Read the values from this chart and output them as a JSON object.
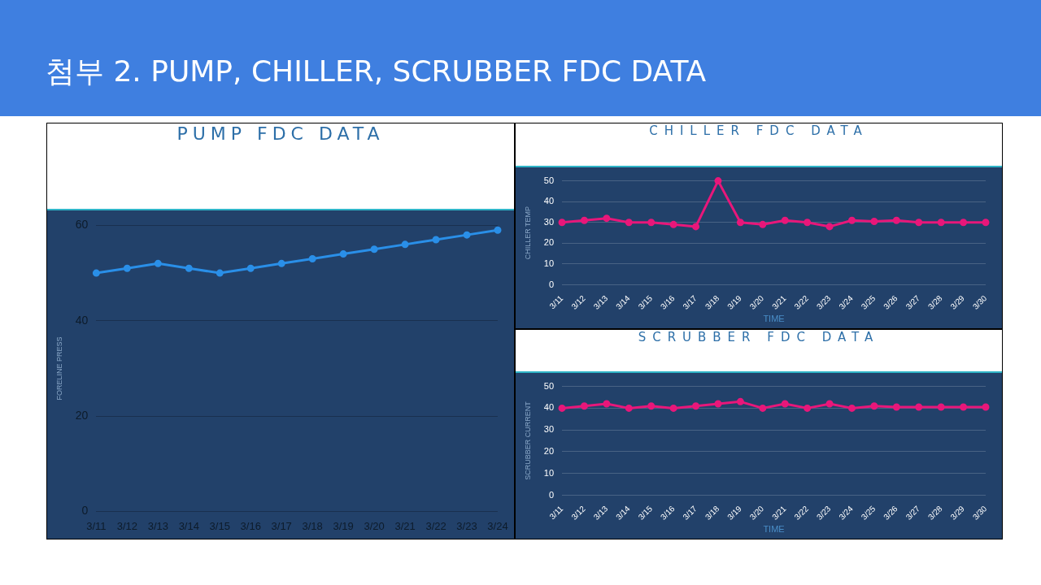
{
  "chart_data": [
    {
      "type": "other",
      "title": "첨부 2. PUMP, CHILLER, SCRUBBER FDC DATA"
    },
    {
      "type": "line",
      "title": "PUMP FDC DATA",
      "ylabel": "FORELINE PRESS",
      "categories": [
        "3/11",
        "3/12",
        "3/13",
        "3/14",
        "3/15",
        "3/16",
        "3/17",
        "3/18",
        "3/19",
        "3/20",
        "3/21",
        "3/22",
        "3/23",
        "3/24"
      ],
      "series": [
        {
          "color": "#2a8fe8",
          "values": [
            50,
            51,
            52,
            51,
            50,
            51,
            52,
            53,
            54,
            55,
            56,
            57,
            58,
            59
          ]
        }
      ],
      "ylim": [
        0,
        60
      ],
      "yticks": [
        0,
        20,
        40,
        60
      ],
      "grid": "y",
      "marker": "circle",
      "legend": false
    },
    {
      "type": "line",
      "title": "CHILLER FDC DATA",
      "xlabel": "TIME",
      "ylabel": "CHILLER TEMP",
      "categories": [
        "3/11",
        "3/12",
        "3/13",
        "3/14",
        "3/15",
        "3/16",
        "3/17",
        "3/18",
        "3/19",
        "3/20",
        "3/21",
        "3/22",
        "3/23",
        "3/24",
        "3/25",
        "3/26",
        "3/27",
        "3/28",
        "3/29",
        "3/30"
      ],
      "series": [
        {
          "color": "#e8177a",
          "values": [
            30,
            31,
            32,
            30,
            30,
            29,
            28,
            50,
            30,
            29,
            31,
            30,
            28,
            31,
            30.5,
            31,
            30,
            30,
            30,
            30
          ]
        }
      ],
      "ylim": [
        0,
        50
      ],
      "yticks": [
        0,
        10,
        20,
        30,
        40,
        50
      ],
      "grid": "y",
      "marker": "circle",
      "legend": false
    },
    {
      "type": "line",
      "title": "SCRUBBER FDC DATA",
      "xlabel": "TIME",
      "ylabel": "SCRUBBER CURRENT",
      "categories": [
        "3/11",
        "3/12",
        "3/13",
        "3/14",
        "3/15",
        "3/16",
        "3/17",
        "3/18",
        "3/19",
        "3/20",
        "3/21",
        "3/22",
        "3/23",
        "3/24",
        "3/25",
        "3/26",
        "3/27",
        "3/28",
        "3/29",
        "3/30"
      ],
      "series": [
        {
          "color": "#e8177a",
          "values": [
            40,
            41,
            42,
            40,
            41,
            40,
            41,
            42,
            43,
            40,
            42,
            40,
            42,
            40,
            41,
            40.5,
            40.5,
            40.5,
            40.5,
            40.5
          ]
        }
      ],
      "ylim": [
        0,
        50
      ],
      "yticks": [
        0,
        10,
        20,
        30,
        40,
        50
      ],
      "grid": "y",
      "marker": "circle",
      "legend": false
    }
  ]
}
